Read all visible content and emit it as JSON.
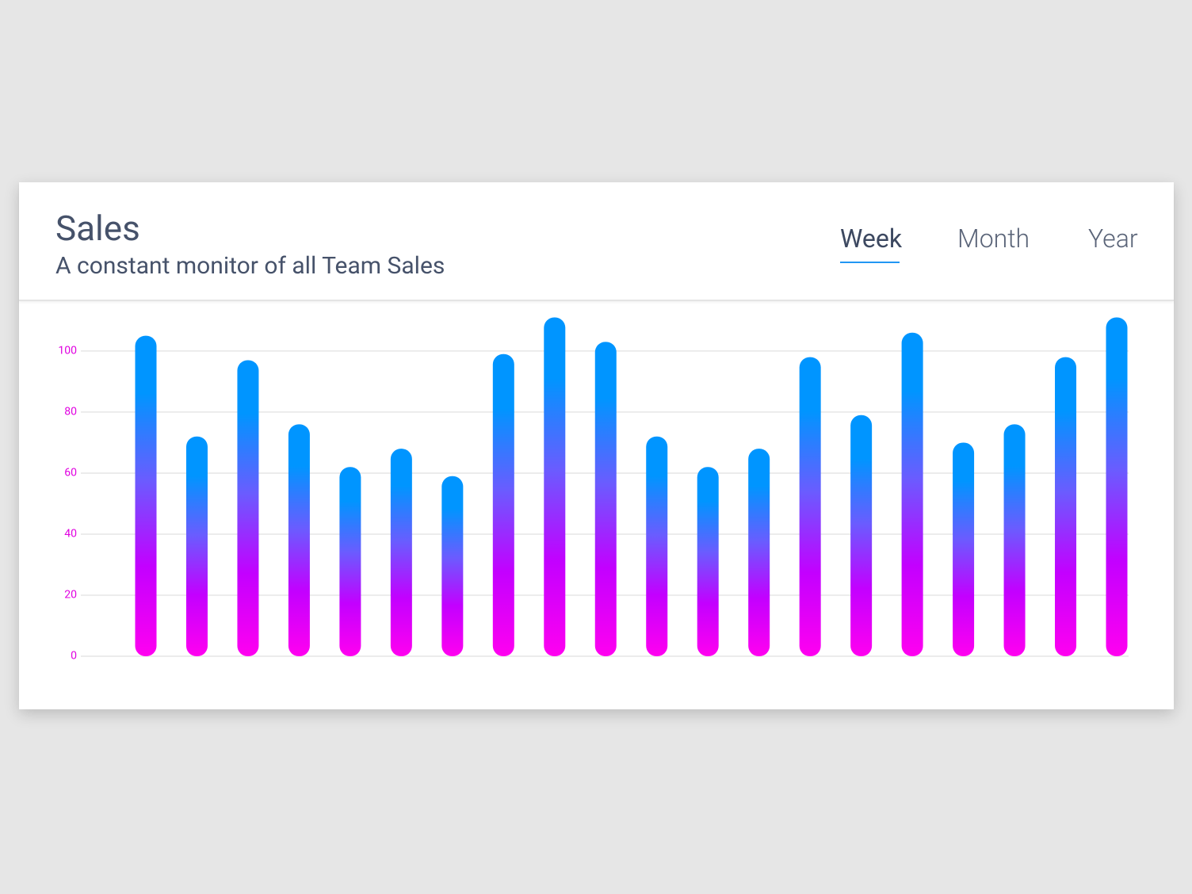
{
  "chart_data": {
    "type": "bar",
    "title": "Sales",
    "subtitle": "A constant monitor of all Team Sales",
    "categories": [
      null,
      null,
      null,
      null,
      null,
      null,
      null,
      null,
      null,
      null,
      null,
      null,
      null,
      null,
      null,
      null,
      null,
      null,
      null,
      null
    ],
    "values": [
      105,
      72,
      97,
      76,
      62,
      68,
      59,
      99,
      111,
      103,
      72,
      62,
      68,
      98,
      79,
      106,
      70,
      76,
      98,
      111
    ],
    "gradient": [
      "#0095ff",
      "#6a5cff",
      "#c300ff",
      "#ff00f0"
    ],
    "ylim": [
      0,
      114
    ],
    "yticks": [
      0,
      20,
      40,
      60,
      80,
      100
    ],
    "grid": true
  },
  "tabs": {
    "items": [
      "Week",
      "Month",
      "Year"
    ],
    "active": 0
  }
}
